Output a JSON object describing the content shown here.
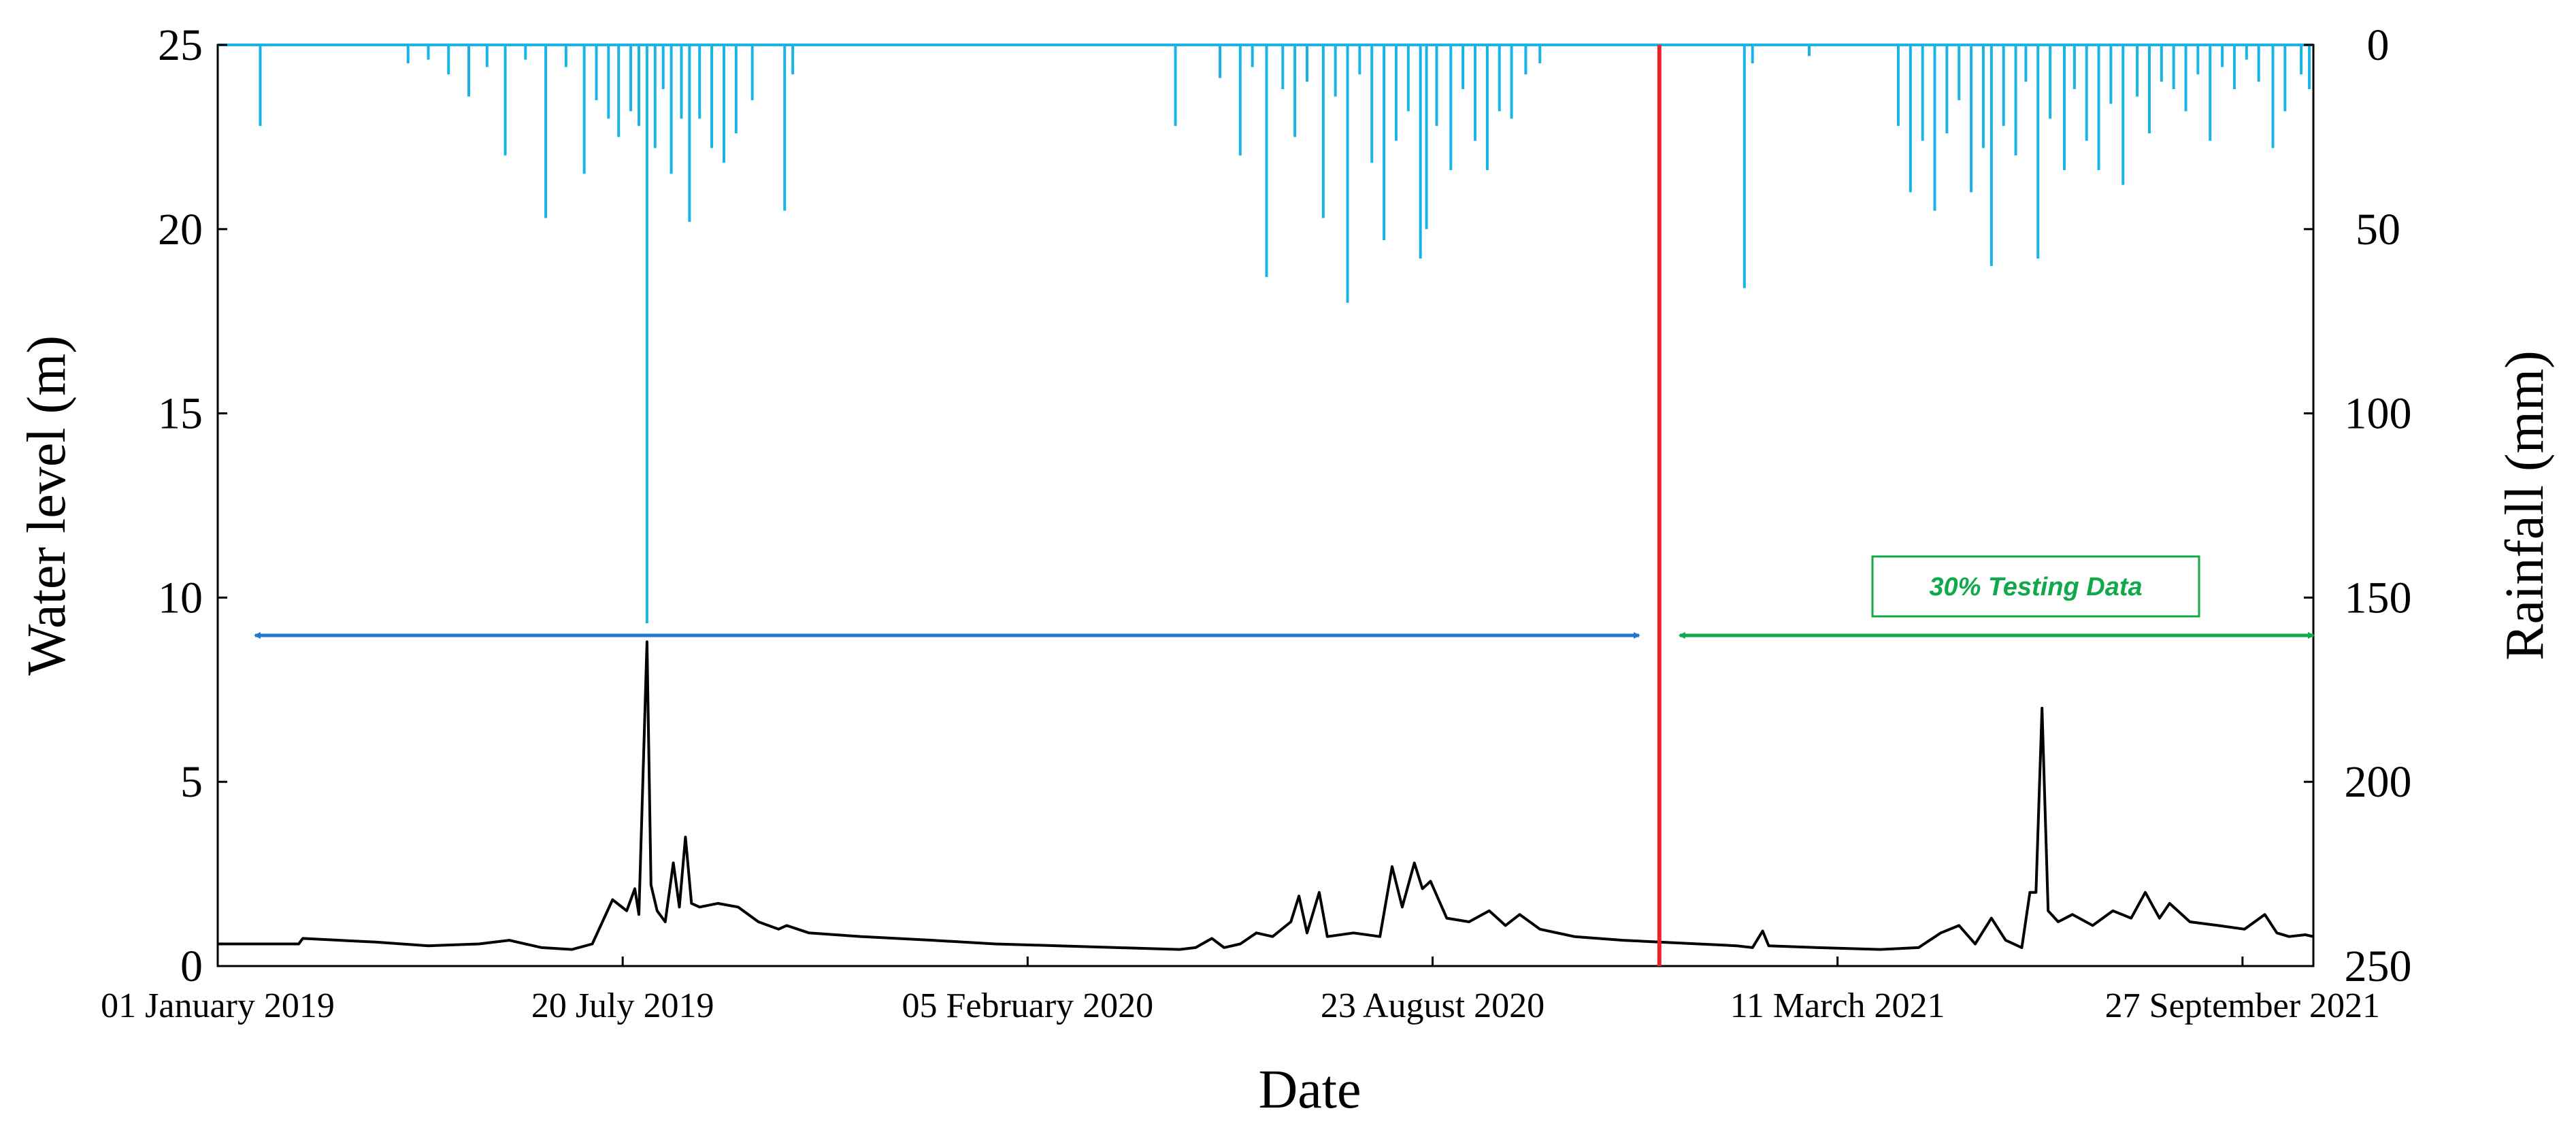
{
  "chart_data": {
    "type": "line",
    "xlabel": "Date",
    "ylabel_left": "Water level (m)",
    "ylabel_right": "Rainfall (mm)",
    "x_range": [
      "2019-01-01",
      "2021-11-01"
    ],
    "ylim_left": [
      0,
      25
    ],
    "ylim_right": [
      0,
      250
    ],
    "right_axis_inverted": true,
    "yticks_left": [
      "0",
      "5",
      "10",
      "15",
      "20",
      "25"
    ],
    "yticks_right": [
      "0",
      "50",
      "100",
      "150",
      "200",
      "250"
    ],
    "xtick_labels": [
      "01 January 2019",
      "20 July 2019",
      "05 February 2020",
      "23 August 2020",
      "11 March 2021",
      "27 September 2021"
    ],
    "xtick_dates": [
      "2019-01-01",
      "2019-07-20",
      "2020-02-05",
      "2020-08-23",
      "2021-03-11",
      "2021-09-27"
    ],
    "split_date": "2020-12-13",
    "split_color": "#e8262a",
    "annotation": {
      "text": "30% Testing Data",
      "color": "#0fa84a",
      "training_arrow_color": "#1f78c8"
    },
    "series": [
      {
        "axis": "left",
        "color": "#000000",
        "points": [
          [
            "2019-01-01",
            0.6
          ],
          [
            "2019-02-10",
            0.6
          ],
          [
            "2019-02-12",
            0.75
          ],
          [
            "2019-03-20",
            0.65
          ],
          [
            "2019-04-15",
            0.55
          ],
          [
            "2019-05-10",
            0.6
          ],
          [
            "2019-05-25",
            0.7
          ],
          [
            "2019-06-10",
            0.5
          ],
          [
            "2019-06-25",
            0.45
          ],
          [
            "2019-07-05",
            0.6
          ],
          [
            "2019-07-10",
            1.2
          ],
          [
            "2019-07-15",
            1.8
          ],
          [
            "2019-07-22",
            1.5
          ],
          [
            "2019-07-26",
            2.1
          ],
          [
            "2019-07-28",
            1.4
          ],
          [
            "2019-08-01",
            8.8
          ],
          [
            "2019-08-03",
            2.2
          ],
          [
            "2019-08-06",
            1.5
          ],
          [
            "2019-08-10",
            1.2
          ],
          [
            "2019-08-14",
            2.8
          ],
          [
            "2019-08-17",
            1.6
          ],
          [
            "2019-08-20",
            3.5
          ],
          [
            "2019-08-23",
            1.7
          ],
          [
            "2019-08-27",
            1.6
          ],
          [
            "2019-09-05",
            1.7
          ],
          [
            "2019-09-15",
            1.6
          ],
          [
            "2019-09-25",
            1.2
          ],
          [
            "2019-10-05",
            1.0
          ],
          [
            "2019-10-09",
            1.1
          ],
          [
            "2019-10-20",
            0.9
          ],
          [
            "2019-11-15",
            0.8
          ],
          [
            "2019-12-20",
            0.7
          ],
          [
            "2020-01-20",
            0.6
          ],
          [
            "2020-02-20",
            0.55
          ],
          [
            "2020-03-20",
            0.5
          ],
          [
            "2020-04-20",
            0.45
          ],
          [
            "2020-04-28",
            0.5
          ],
          [
            "2020-05-06",
            0.75
          ],
          [
            "2020-05-12",
            0.5
          ],
          [
            "2020-05-20",
            0.6
          ],
          [
            "2020-05-28",
            0.9
          ],
          [
            "2020-06-05",
            0.8
          ],
          [
            "2020-06-14",
            1.2
          ],
          [
            "2020-06-18",
            1.9
          ],
          [
            "2020-06-22",
            0.9
          ],
          [
            "2020-06-28",
            2.0
          ],
          [
            "2020-07-02",
            0.8
          ],
          [
            "2020-07-15",
            0.9
          ],
          [
            "2020-07-28",
            0.8
          ],
          [
            "2020-08-03",
            2.7
          ],
          [
            "2020-08-08",
            1.6
          ],
          [
            "2020-08-14",
            2.8
          ],
          [
            "2020-08-18",
            2.1
          ],
          [
            "2020-08-22",
            2.3
          ],
          [
            "2020-08-30",
            1.3
          ],
          [
            "2020-09-10",
            1.2
          ],
          [
            "2020-09-20",
            1.5
          ],
          [
            "2020-09-28",
            1.1
          ],
          [
            "2020-10-05",
            1.4
          ],
          [
            "2020-10-15",
            1.0
          ],
          [
            "2020-11-01",
            0.8
          ],
          [
            "2020-11-25",
            0.7
          ],
          [
            "2020-12-13",
            0.65
          ],
          [
            "2021-01-20",
            0.55
          ],
          [
            "2021-01-28",
            0.5
          ],
          [
            "2021-02-02",
            0.95
          ],
          [
            "2021-02-05",
            0.55
          ],
          [
            "2021-03-01",
            0.5
          ],
          [
            "2021-04-01",
            0.45
          ],
          [
            "2021-04-20",
            0.5
          ],
          [
            "2021-05-01",
            0.9
          ],
          [
            "2021-05-10",
            1.1
          ],
          [
            "2021-05-18",
            0.6
          ],
          [
            "2021-05-26",
            1.3
          ],
          [
            "2021-06-02",
            0.7
          ],
          [
            "2021-06-10",
            0.5
          ],
          [
            "2021-06-14",
            2.0
          ],
          [
            "2021-06-17",
            2.0
          ],
          [
            "2021-06-20",
            7.0
          ],
          [
            "2021-06-23",
            1.5
          ],
          [
            "2021-06-28",
            1.2
          ],
          [
            "2021-07-05",
            1.4
          ],
          [
            "2021-07-15",
            1.1
          ],
          [
            "2021-07-25",
            1.5
          ],
          [
            "2021-08-03",
            1.3
          ],
          [
            "2021-08-10",
            2.0
          ],
          [
            "2021-08-17",
            1.3
          ],
          [
            "2021-08-22",
            1.7
          ],
          [
            "2021-09-01",
            1.2
          ],
          [
            "2021-09-15",
            1.1
          ],
          [
            "2021-09-28",
            1.0
          ],
          [
            "2021-10-08",
            1.4
          ],
          [
            "2021-10-14",
            0.9
          ],
          [
            "2021-10-20",
            0.8
          ],
          [
            "2021-10-28",
            0.85
          ],
          [
            "2021-11-01",
            0.8
          ]
        ]
      },
      {
        "axis": "right",
        "color": "#18b4e6",
        "style": "bars-from-top",
        "points": [
          [
            "2019-01-22",
            22
          ],
          [
            "2019-04-05",
            5
          ],
          [
            "2019-04-15",
            4
          ],
          [
            "2019-04-25",
            8
          ],
          [
            "2019-05-05",
            14
          ],
          [
            "2019-05-14",
            6
          ],
          [
            "2019-05-23",
            30
          ],
          [
            "2019-06-02",
            4
          ],
          [
            "2019-06-12",
            47
          ],
          [
            "2019-06-22",
            6
          ],
          [
            "2019-07-01",
            35
          ],
          [
            "2019-07-07",
            15
          ],
          [
            "2019-07-13",
            20
          ],
          [
            "2019-07-18",
            25
          ],
          [
            "2019-07-24",
            18
          ],
          [
            "2019-07-28",
            22
          ],
          [
            "2019-08-01",
            157
          ],
          [
            "2019-08-05",
            28
          ],
          [
            "2019-08-09",
            12
          ],
          [
            "2019-08-13",
            35
          ],
          [
            "2019-08-18",
            20
          ],
          [
            "2019-08-22",
            48
          ],
          [
            "2019-08-27",
            20
          ],
          [
            "2019-09-02",
            28
          ],
          [
            "2019-09-08",
            32
          ],
          [
            "2019-09-14",
            24
          ],
          [
            "2019-09-22",
            15
          ],
          [
            "2019-10-08",
            45
          ],
          [
            "2019-10-12",
            8
          ],
          [
            "2020-04-18",
            22
          ],
          [
            "2020-05-10",
            9
          ],
          [
            "2020-05-20",
            30
          ],
          [
            "2020-05-26",
            6
          ],
          [
            "2020-06-02",
            63
          ],
          [
            "2020-06-10",
            12
          ],
          [
            "2020-06-16",
            25
          ],
          [
            "2020-06-22",
            10
          ],
          [
            "2020-06-30",
            47
          ],
          [
            "2020-07-06",
            14
          ],
          [
            "2020-07-12",
            70
          ],
          [
            "2020-07-18",
            8
          ],
          [
            "2020-07-24",
            32
          ],
          [
            "2020-07-30",
            53
          ],
          [
            "2020-08-05",
            26
          ],
          [
            "2020-08-11",
            18
          ],
          [
            "2020-08-17",
            58
          ],
          [
            "2020-08-20",
            50
          ],
          [
            "2020-08-25",
            22
          ],
          [
            "2020-09-01",
            34
          ],
          [
            "2020-09-07",
            12
          ],
          [
            "2020-09-13",
            26
          ],
          [
            "2020-09-19",
            34
          ],
          [
            "2020-09-25",
            18
          ],
          [
            "2020-10-01",
            20
          ],
          [
            "2020-10-08",
            8
          ],
          [
            "2020-10-15",
            5
          ],
          [
            "2021-01-24",
            66
          ],
          [
            "2021-01-28",
            5
          ],
          [
            "2021-02-25",
            3
          ],
          [
            "2021-04-10",
            22
          ],
          [
            "2021-04-16",
            40
          ],
          [
            "2021-04-22",
            26
          ],
          [
            "2021-04-28",
            45
          ],
          [
            "2021-05-04",
            24
          ],
          [
            "2021-05-10",
            15
          ],
          [
            "2021-05-16",
            40
          ],
          [
            "2021-05-22",
            28
          ],
          [
            "2021-05-26",
            60
          ],
          [
            "2021-06-01",
            22
          ],
          [
            "2021-06-07",
            30
          ],
          [
            "2021-06-12",
            10
          ],
          [
            "2021-06-18",
            58
          ],
          [
            "2021-06-24",
            20
          ],
          [
            "2021-07-01",
            34
          ],
          [
            "2021-07-06",
            12
          ],
          [
            "2021-07-12",
            26
          ],
          [
            "2021-07-18",
            34
          ],
          [
            "2021-07-24",
            16
          ],
          [
            "2021-07-30",
            38
          ],
          [
            "2021-08-06",
            14
          ],
          [
            "2021-08-12",
            24
          ],
          [
            "2021-08-18",
            10
          ],
          [
            "2021-08-24",
            12
          ],
          [
            "2021-08-30",
            18
          ],
          [
            "2021-09-05",
            8
          ],
          [
            "2021-09-11",
            26
          ],
          [
            "2021-09-17",
            6
          ],
          [
            "2021-09-23",
            12
          ],
          [
            "2021-09-29",
            4
          ],
          [
            "2021-10-05",
            10
          ],
          [
            "2021-10-12",
            28
          ],
          [
            "2021-10-18",
            18
          ],
          [
            "2021-10-26",
            8
          ],
          [
            "2021-10-30",
            12
          ]
        ]
      }
    ]
  }
}
